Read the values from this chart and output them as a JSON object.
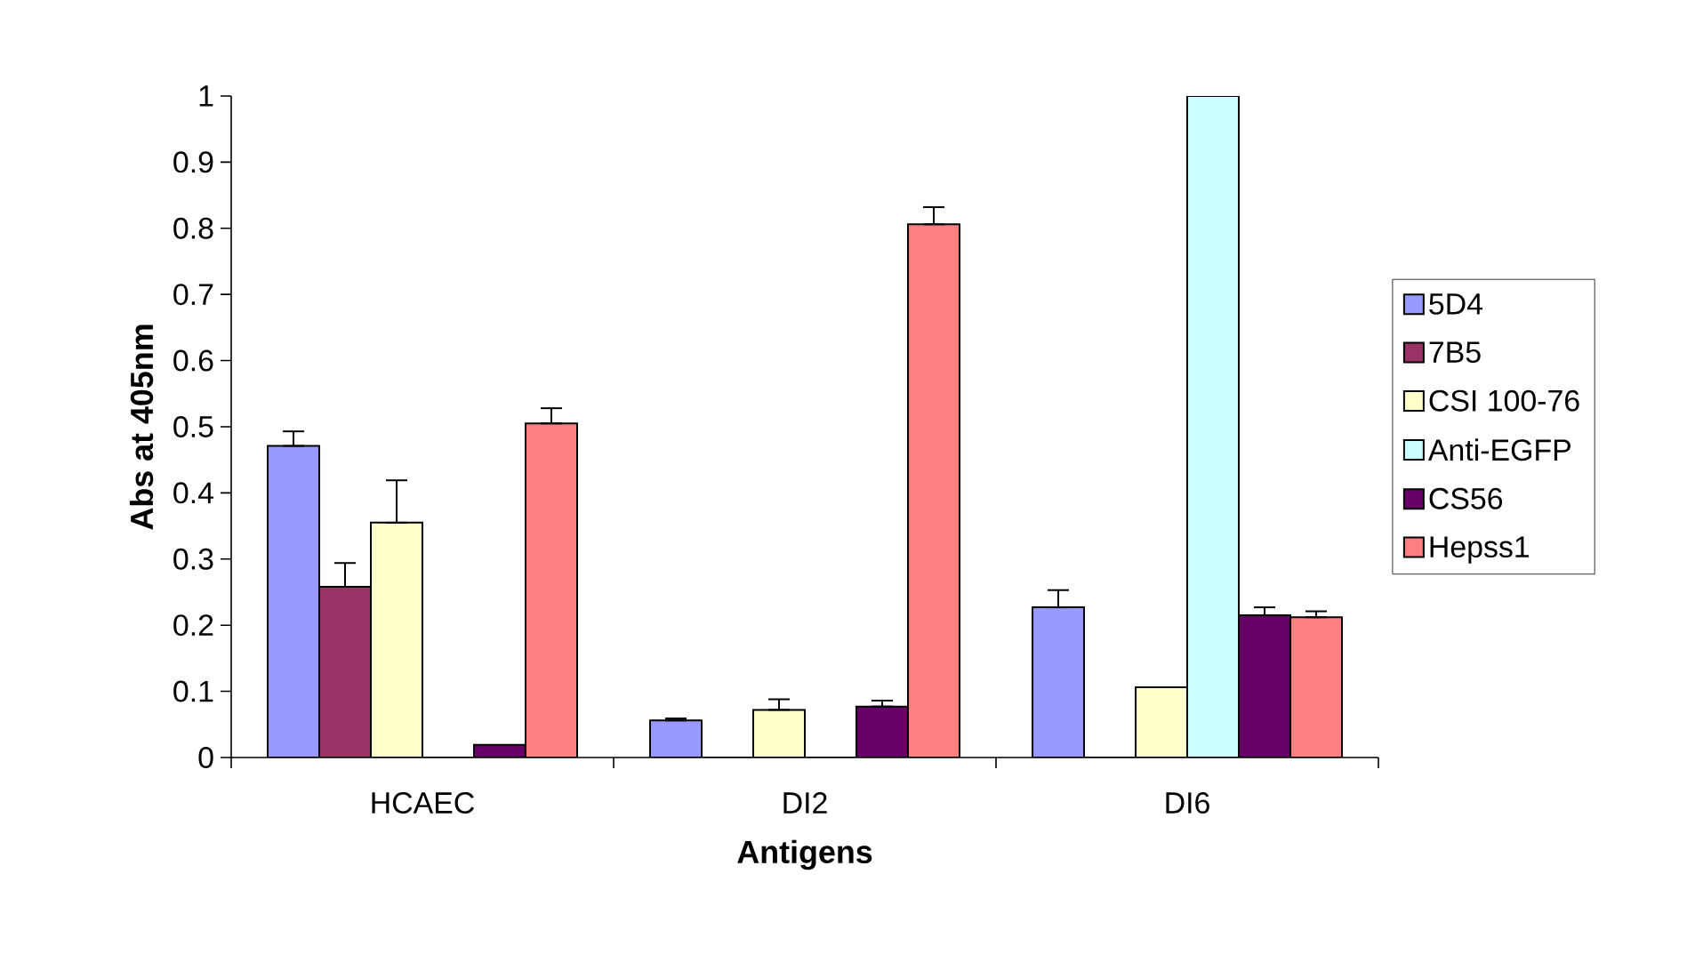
{
  "chart_data": {
    "type": "bar",
    "xlabel": "Antigens",
    "ylabel": "Abs at 405nm",
    "categories": [
      "HCAEC",
      "DI2",
      "DI6"
    ],
    "series": [
      {
        "name": "5D4",
        "color": "#9999ff",
        "values": [
          0.471,
          0.056,
          0.227
        ],
        "errors": [
          [
            0.471,
            0.493
          ],
          [
            0.056,
            0.059
          ],
          [
            0.227,
            0.253
          ]
        ]
      },
      {
        "name": "7B5",
        "color": "#993366",
        "values": [
          0.258,
          0,
          0
        ],
        "errors": [
          [
            0.258,
            0.294
          ],
          null,
          null
        ]
      },
      {
        "name": "CSI 100-76",
        "color": "#ffffcc",
        "values": [
          0.355,
          0.072,
          0.106
        ],
        "errors": [
          [
            0.355,
            0.419
          ],
          [
            0.072,
            0.088
          ],
          null
        ]
      },
      {
        "name": "Anti-EGFP",
        "color": "#ccffff",
        "values": [
          0,
          0,
          1
        ],
        "errors": [
          null,
          null,
          null
        ]
      },
      {
        "name": "CS56",
        "color": "#660066",
        "values": [
          0.019,
          0.077,
          0.215
        ],
        "errors": [
          null,
          [
            0.077,
            0.086
          ],
          [
            0.215,
            0.227
          ]
        ]
      },
      {
        "name": "Hepss1",
        "color": "#ff8080",
        "values": [
          0.505,
          0.806,
          0.212
        ],
        "errors": [
          [
            0.505,
            0.528
          ],
          [
            0.806,
            0.832
          ],
          [
            0.212,
            0.221
          ]
        ]
      }
    ],
    "ylim": [
      0,
      1
    ],
    "yticks": [
      0,
      0.1,
      0.2,
      0.3,
      0.4,
      0.5,
      0.6,
      0.7,
      0.8,
      0.9,
      1
    ],
    "grid": false,
    "legend": "right"
  }
}
